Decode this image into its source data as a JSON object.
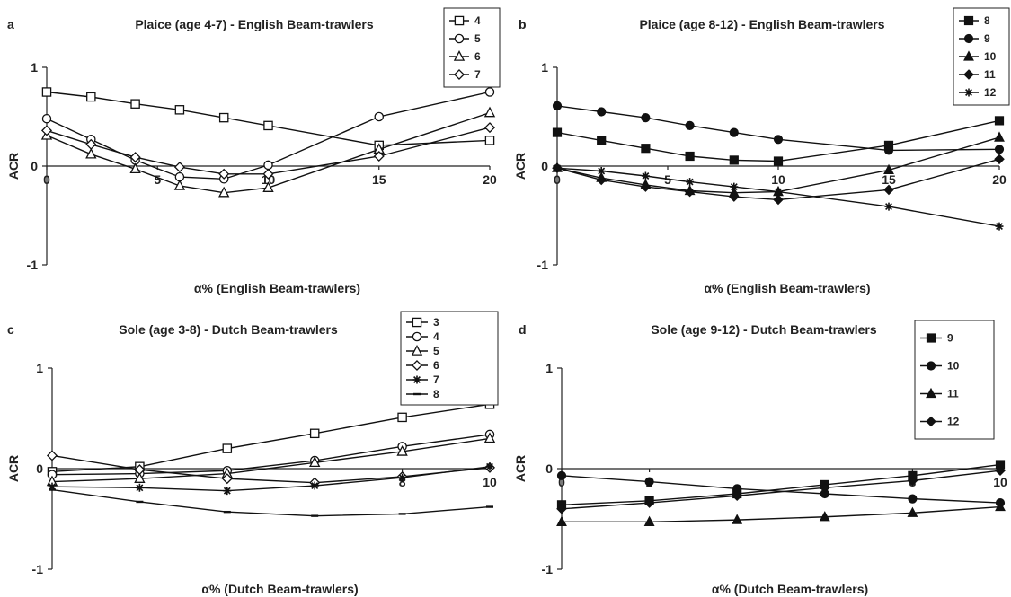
{
  "chart_data": [
    {
      "letter": "a",
      "type": "line",
      "title": "Plaice (age 4-7) - English Beam-trawlers",
      "xlabel": "α% (English Beam-trawlers)",
      "ylabel": "ACR",
      "xlim": [
        0,
        20
      ],
      "ylim": [
        -1,
        1
      ],
      "xticks": [
        0,
        5,
        10,
        15,
        20
      ],
      "yticks": [
        -1,
        0,
        1
      ],
      "legend": "top-right",
      "series": [
        {
          "name": "4",
          "marker": "square-open",
          "x": [
            0,
            2,
            4,
            6,
            8,
            10,
            15,
            20
          ],
          "y": [
            0.75,
            0.7,
            0.63,
            0.57,
            0.49,
            0.41,
            0.21,
            0.26
          ]
        },
        {
          "name": "5",
          "marker": "circle-open",
          "x": [
            0,
            2,
            4,
            6,
            8,
            10,
            15,
            20
          ],
          "y": [
            0.48,
            0.27,
            0.06,
            -0.11,
            -0.13,
            0.01,
            0.5,
            0.75
          ]
        },
        {
          "name": "6",
          "marker": "triangle-open",
          "x": [
            0,
            2,
            4,
            6,
            8,
            10,
            15,
            20
          ],
          "y": [
            0.31,
            0.12,
            -0.03,
            -0.2,
            -0.27,
            -0.22,
            0.17,
            0.54
          ]
        },
        {
          "name": "7",
          "marker": "diamond-open",
          "x": [
            0,
            2,
            4,
            6,
            8,
            10,
            15,
            20
          ],
          "y": [
            0.36,
            0.22,
            0.09,
            -0.01,
            -0.08,
            -0.08,
            0.1,
            0.39
          ]
        }
      ]
    },
    {
      "letter": "b",
      "type": "line",
      "title": "Plaice (age 8-12) - English Beam-trawlers",
      "xlabel": "α% (English Beam-trawlers)",
      "ylabel": "ACR",
      "xlim": [
        0,
        20
      ],
      "ylim": [
        -1,
        1
      ],
      "xticks": [
        0,
        5,
        10,
        15,
        20
      ],
      "yticks": [
        -1,
        0,
        1
      ],
      "legend": "top-right",
      "series": [
        {
          "name": "8",
          "marker": "square-filled",
          "x": [
            0,
            2,
            4,
            6,
            8,
            10,
            15,
            20
          ],
          "y": [
            0.34,
            0.26,
            0.18,
            0.1,
            0.06,
            0.05,
            0.21,
            0.46
          ]
        },
        {
          "name": "9",
          "marker": "circle-filled",
          "x": [
            0,
            2,
            4,
            6,
            8,
            10,
            15,
            20
          ],
          "y": [
            0.61,
            0.55,
            0.49,
            0.41,
            0.34,
            0.27,
            0.16,
            0.17
          ]
        },
        {
          "name": "10",
          "marker": "triangle-filled",
          "x": [
            0,
            2,
            4,
            6,
            8,
            10,
            15,
            20
          ],
          "y": [
            -0.02,
            -0.12,
            -0.19,
            -0.25,
            -0.27,
            -0.26,
            -0.04,
            0.29
          ]
        },
        {
          "name": "11",
          "marker": "diamond-filled",
          "x": [
            0,
            2,
            4,
            6,
            8,
            10,
            15,
            20
          ],
          "y": [
            -0.02,
            -0.14,
            -0.21,
            -0.26,
            -0.31,
            -0.34,
            -0.24,
            0.07
          ]
        },
        {
          "name": "12",
          "marker": "asterisk",
          "x": [
            0,
            2,
            4,
            6,
            8,
            10,
            15,
            20
          ],
          "y": [
            -0.02,
            -0.05,
            -0.1,
            -0.16,
            -0.21,
            -0.26,
            -0.41,
            -0.61
          ]
        }
      ]
    },
    {
      "letter": "c",
      "type": "line",
      "title": "Sole (age 3-8) - Dutch Beam-trawlers",
      "xlabel": "α% (Dutch Beam-trawlers)",
      "ylabel": "ACR",
      "xlim": [
        0,
        10
      ],
      "ylim": [
        -1,
        1
      ],
      "xticks": [
        8,
        10
      ],
      "yticks": [
        -1,
        0,
        1
      ],
      "legend": "top-right",
      "series": [
        {
          "name": "3",
          "marker": "square-open",
          "x": [
            0,
            2,
            4,
            6,
            8,
            10
          ],
          "y": [
            -0.03,
            0.02,
            0.2,
            0.35,
            0.51,
            0.64
          ]
        },
        {
          "name": "4",
          "marker": "circle-open",
          "x": [
            0,
            2,
            4,
            6,
            8,
            10
          ],
          "y": [
            -0.06,
            -0.05,
            -0.02,
            0.08,
            0.22,
            0.34
          ]
        },
        {
          "name": "5",
          "marker": "triangle-open",
          "x": [
            0,
            2,
            4,
            6,
            8,
            10
          ],
          "y": [
            -0.13,
            -0.1,
            -0.05,
            0.06,
            0.17,
            0.3
          ]
        },
        {
          "name": "6",
          "marker": "diamond-open",
          "x": [
            0,
            2,
            4,
            6,
            8,
            10
          ],
          "y": [
            0.13,
            -0.01,
            -0.1,
            -0.14,
            -0.08,
            0.01
          ]
        },
        {
          "name": "7",
          "marker": "asterisk",
          "x": [
            0,
            2,
            4,
            6,
            8,
            10
          ],
          "y": [
            -0.18,
            -0.19,
            -0.22,
            -0.17,
            -0.09,
            0.02
          ]
        },
        {
          "name": "8",
          "marker": "dash",
          "x": [
            0,
            2,
            4,
            6,
            8,
            10
          ],
          "y": [
            -0.21,
            -0.33,
            -0.43,
            -0.47,
            -0.45,
            -0.38
          ]
        }
      ]
    },
    {
      "letter": "d",
      "type": "line",
      "title": "Sole (age 9-12) - Dutch Beam-trawlers",
      "xlabel": "α% (Dutch Beam-trawlers)",
      "ylabel": "ACR",
      "xlim": [
        0,
        10
      ],
      "ylim": [
        -1,
        1
      ],
      "xticks": [
        0,
        2,
        8,
        10
      ],
      "yticks": [
        -1,
        0,
        1
      ],
      "legend": "top-right",
      "series": [
        {
          "name": "9",
          "marker": "square-filled",
          "x": [
            0,
            2,
            4,
            6,
            8,
            10
          ],
          "y": [
            -0.36,
            -0.32,
            -0.25,
            -0.16,
            -0.07,
            0.04
          ]
        },
        {
          "name": "10",
          "marker": "circle-filled",
          "x": [
            0,
            2,
            4,
            6,
            8,
            10
          ],
          "y": [
            -0.07,
            -0.13,
            -0.2,
            -0.25,
            -0.3,
            -0.34
          ]
        },
        {
          "name": "11",
          "marker": "triangle-filled",
          "x": [
            0,
            2,
            4,
            6,
            8,
            10
          ],
          "y": [
            -0.53,
            -0.53,
            -0.51,
            -0.48,
            -0.44,
            -0.38
          ]
        },
        {
          "name": "12",
          "marker": "diamond-filled",
          "x": [
            0,
            2,
            4,
            6,
            8,
            10
          ],
          "y": [
            -0.4,
            -0.34,
            -0.27,
            -0.19,
            -0.12,
            -0.02
          ]
        }
      ]
    }
  ]
}
